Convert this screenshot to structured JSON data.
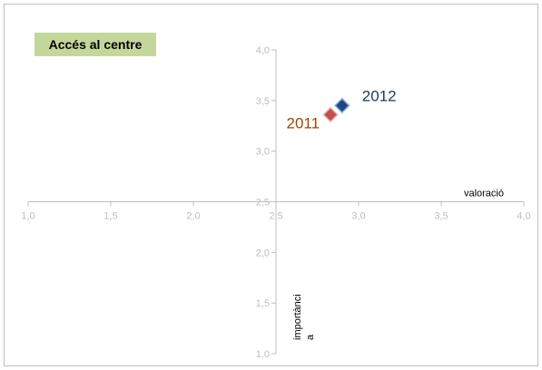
{
  "chart_data": {
    "type": "scatter",
    "title": "Accés al centre",
    "xlabel": "valoració",
    "ylabel_line1": "importànci",
    "ylabel_line2": "a",
    "xlim": [
      1.0,
      4.0
    ],
    "ylim": [
      1.0,
      4.0
    ],
    "x_ticks": [
      "1,0",
      "1,5",
      "2,0",
      "2,5",
      "3,0",
      "3,5",
      "4,0"
    ],
    "y_ticks": [
      "1,0",
      "1,5",
      "2,0",
      "2,5",
      "3,0",
      "3,5",
      "4,0"
    ],
    "axis_cross": {
      "x": 2.5,
      "y": 2.5
    },
    "grid": false,
    "points": [
      {
        "label": "2011",
        "x": 2.83,
        "y": 3.36,
        "color": "#c0504d",
        "label_color": "#984807"
      },
      {
        "label": "2012",
        "x": 2.9,
        "y": 3.45,
        "color": "#1f497d",
        "label_color": "#1f3864"
      }
    ]
  }
}
